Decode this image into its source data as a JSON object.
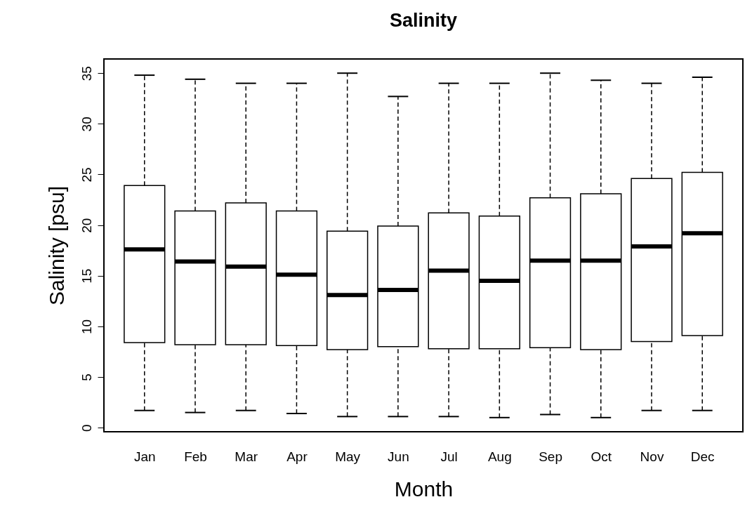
{
  "chart_data": {
    "type": "box",
    "title": "Salinity",
    "xlabel": "Month",
    "ylabel": "Salinity [psu]",
    "categories": [
      "Jan",
      "Feb",
      "Mar",
      "Apr",
      "May",
      "Jun",
      "Jul",
      "Aug",
      "Sep",
      "Oct",
      "Nov",
      "Dec"
    ],
    "boxes": [
      {
        "low": 1.7,
        "q1": 8.4,
        "median": 17.6,
        "q3": 23.9,
        "high": 34.8
      },
      {
        "low": 1.5,
        "q1": 8.2,
        "median": 16.4,
        "q3": 21.4,
        "high": 34.4
      },
      {
        "low": 1.7,
        "q1": 8.2,
        "median": 15.9,
        "q3": 22.2,
        "high": 34.0
      },
      {
        "low": 1.4,
        "q1": 8.1,
        "median": 15.1,
        "q3": 21.4,
        "high": 34.0
      },
      {
        "low": 1.1,
        "q1": 7.7,
        "median": 13.1,
        "q3": 19.4,
        "high": 35.0
      },
      {
        "low": 1.1,
        "q1": 8.0,
        "median": 13.6,
        "q3": 19.9,
        "high": 32.7
      },
      {
        "low": 1.1,
        "q1": 7.8,
        "median": 15.5,
        "q3": 21.2,
        "high": 34.0
      },
      {
        "low": 1.0,
        "q1": 7.8,
        "median": 14.5,
        "q3": 20.9,
        "high": 34.0
      },
      {
        "low": 1.3,
        "q1": 7.9,
        "median": 16.5,
        "q3": 22.7,
        "high": 35.0
      },
      {
        "low": 1.0,
        "q1": 7.7,
        "median": 16.5,
        "q3": 23.1,
        "high": 34.3
      },
      {
        "low": 1.7,
        "q1": 8.5,
        "median": 17.9,
        "q3": 24.6,
        "high": 34.0
      },
      {
        "low": 1.7,
        "q1": 9.1,
        "median": 19.2,
        "q3": 25.2,
        "high": 34.6
      }
    ],
    "ylim": [
      -0.4,
      36.4
    ],
    "yticks": [
      0,
      5,
      10,
      15,
      20,
      25,
      30,
      35
    ],
    "grid": false
  }
}
